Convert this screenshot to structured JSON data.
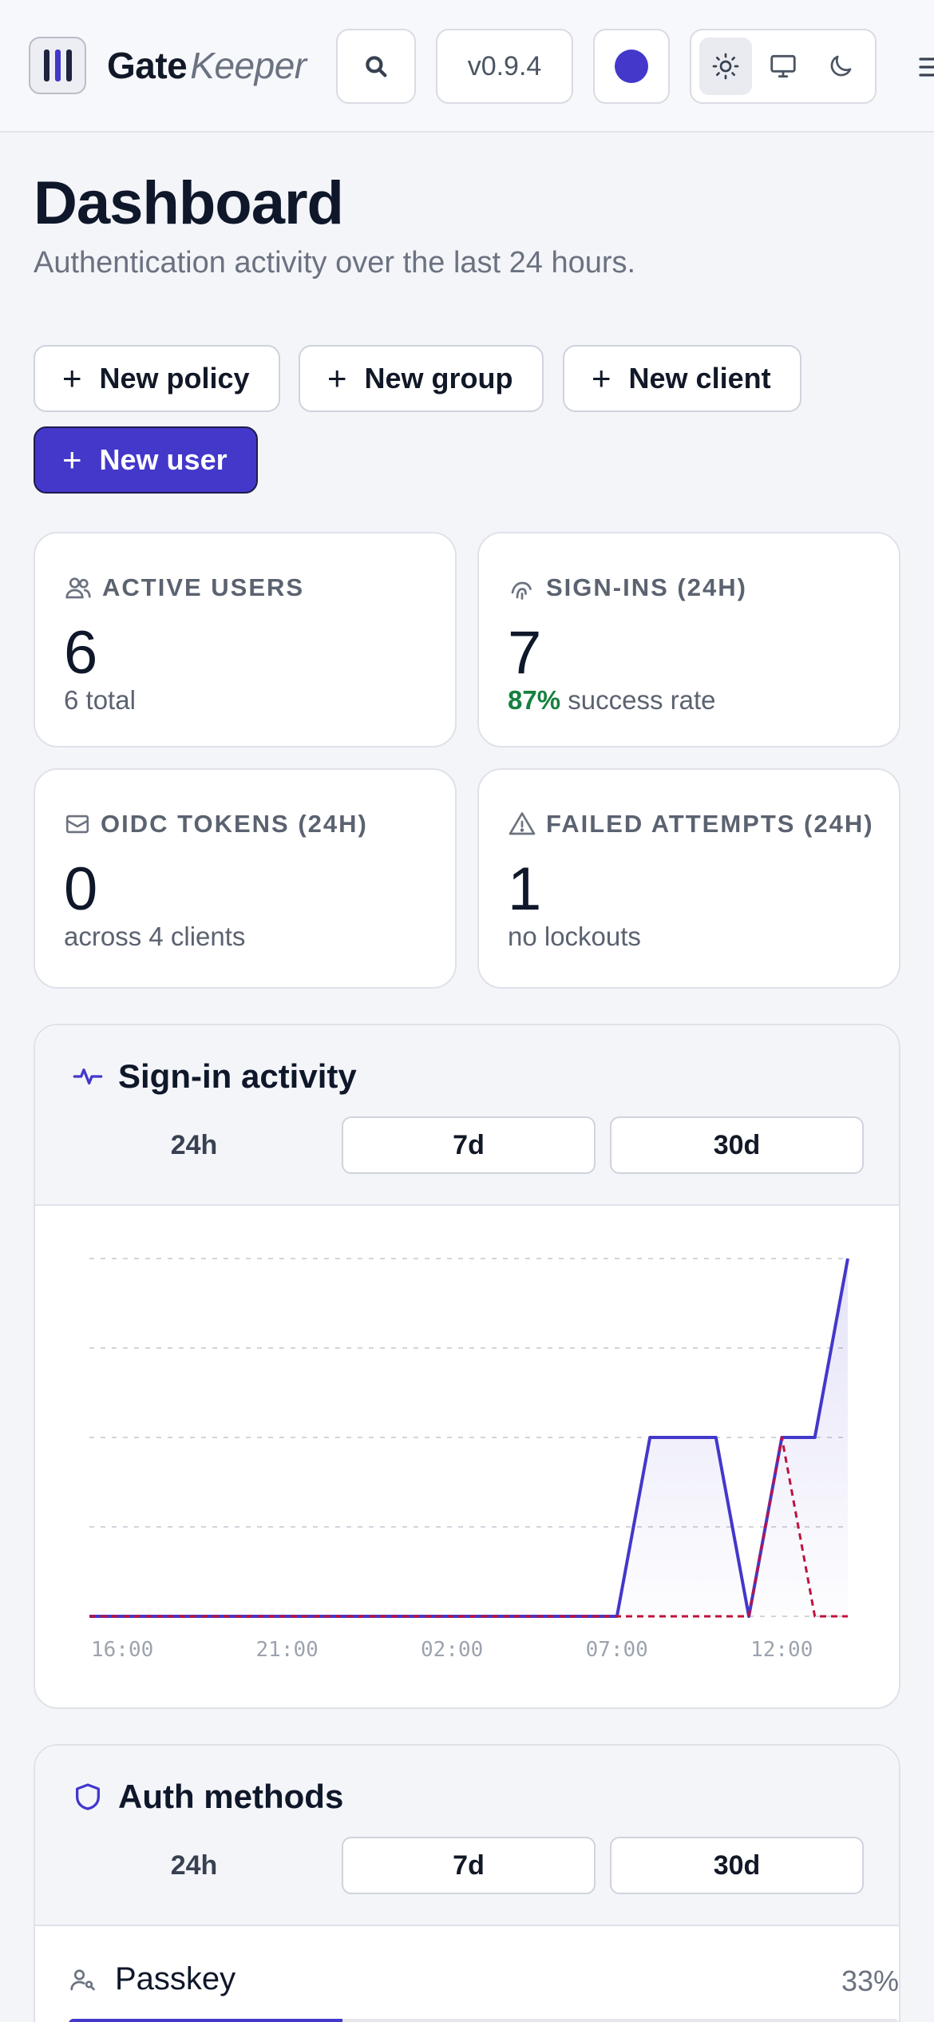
{
  "header": {
    "brand_primary": "Gate",
    "brand_secondary": "Keeper",
    "version": "v0.9.4",
    "accent_color": "#4338ca",
    "icons": [
      "logo-icon",
      "search-icon",
      "color-dot",
      "sun-icon",
      "monitor-icon",
      "moon-icon",
      "menu-icon"
    ]
  },
  "page": {
    "title": "Dashboard",
    "subtitle": "Authentication activity over the last 24 hours."
  },
  "actions": {
    "new_policy": "New policy",
    "new_group": "New group",
    "new_client": "New client",
    "new_user": "New user"
  },
  "stats": {
    "active_users": {
      "label": "ACTIVE USERS",
      "value": "6",
      "sub": "6 total"
    },
    "sign_ins": {
      "label": "SIGN-INS (24H)",
      "value": "7",
      "rate": "87%",
      "sub": "success rate"
    },
    "oidc_tokens": {
      "label": "OIDC TOKENS (24H)",
      "value": "0",
      "sub": "across 4 clients"
    },
    "failed": {
      "label": "FAILED ATTEMPTS (24H)",
      "value": "1",
      "sub": "no lockouts"
    }
  },
  "activity": {
    "title": "Sign-in activity",
    "tabs": [
      "24h",
      "7d",
      "30d"
    ],
    "selected_tab": "24h"
  },
  "chart_data": {
    "type": "line",
    "x_tick_labels": [
      "16:00",
      "21:00",
      "02:00",
      "07:00",
      "12:00"
    ],
    "x": [
      "16:00",
      "17:00",
      "18:00",
      "19:00",
      "20:00",
      "21:00",
      "22:00",
      "23:00",
      "00:00",
      "01:00",
      "02:00",
      "03:00",
      "04:00",
      "05:00",
      "06:00",
      "07:00",
      "08:00",
      "09:00",
      "10:00",
      "11:00",
      "12:00",
      "13:00",
      "14:00",
      "15:00"
    ],
    "series": [
      {
        "color": "#4338ca",
        "style": "solid",
        "filled": true,
        "values": [
          0,
          0,
          0,
          0,
          0,
          0,
          0,
          0,
          0,
          0,
          0,
          0,
          0,
          0,
          0,
          0,
          0,
          2,
          2,
          2,
          0,
          2,
          2,
          4
        ]
      },
      {
        "color": "#be123c",
        "style": "dashed",
        "values": [
          0,
          0,
          0,
          0,
          0,
          0,
          0,
          0,
          0,
          0,
          0,
          0,
          0,
          0,
          0,
          0,
          0,
          0,
          0,
          0,
          0,
          2,
          0,
          0
        ]
      }
    ],
    "ylim": [
      0,
      4
    ],
    "grid": true
  },
  "auth_methods": {
    "title": "Auth methods",
    "tabs": [
      "24h",
      "7d",
      "30d"
    ],
    "selected_tab": "24h",
    "items": [
      {
        "name": "Passkey",
        "percent_label": "33%",
        "fraction": 0.33
      }
    ]
  }
}
